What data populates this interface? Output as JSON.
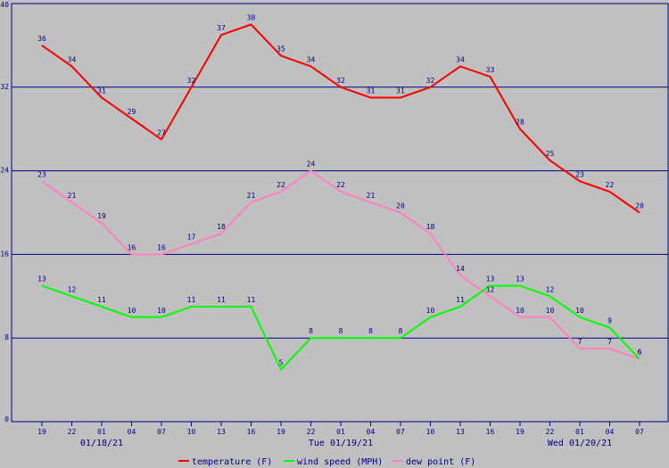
{
  "chart_data": {
    "type": "line",
    "categories": [
      "19",
      "22",
      "01",
      "04",
      "07",
      "10",
      "13",
      "16",
      "19",
      "22",
      "01",
      "04",
      "07",
      "10",
      "13",
      "16",
      "19",
      "22",
      "01",
      "04",
      "07"
    ],
    "date_labels": [
      {
        "index": 2,
        "text": "01/18/21"
      },
      {
        "index": 10,
        "text": "Tue 01/19/21"
      },
      {
        "index": 18,
        "text": "Wed 01/20/21"
      }
    ],
    "ylim": [
      0,
      40
    ],
    "yticks": [
      0,
      8,
      16,
      24,
      32,
      40
    ],
    "grid": true,
    "series": [
      {
        "name": "temperature (F)",
        "color": "#ff0000",
        "values": [
          36,
          34,
          31,
          29,
          27,
          32,
          37,
          38,
          35,
          34,
          32,
          31,
          31,
          32,
          34,
          33,
          28,
          25,
          23,
          22,
          20
        ]
      },
      {
        "name": "wind speed (MPH)",
        "color": "#00ff00",
        "values": [
          13,
          12,
          11,
          10,
          10,
          11,
          11,
          11,
          5,
          8,
          8,
          8,
          8,
          10,
          11,
          13,
          13,
          12,
          10,
          9,
          6
        ]
      },
      {
        "name": "dew point (F)",
        "color": "#ff80c0",
        "values": [
          23,
          21,
          19,
          16,
          16,
          17,
          18,
          21,
          22,
          24,
          22,
          21,
          20,
          18,
          14,
          12,
          10,
          10,
          7,
          7,
          6
        ]
      }
    ],
    "legend_position": "bottom"
  }
}
